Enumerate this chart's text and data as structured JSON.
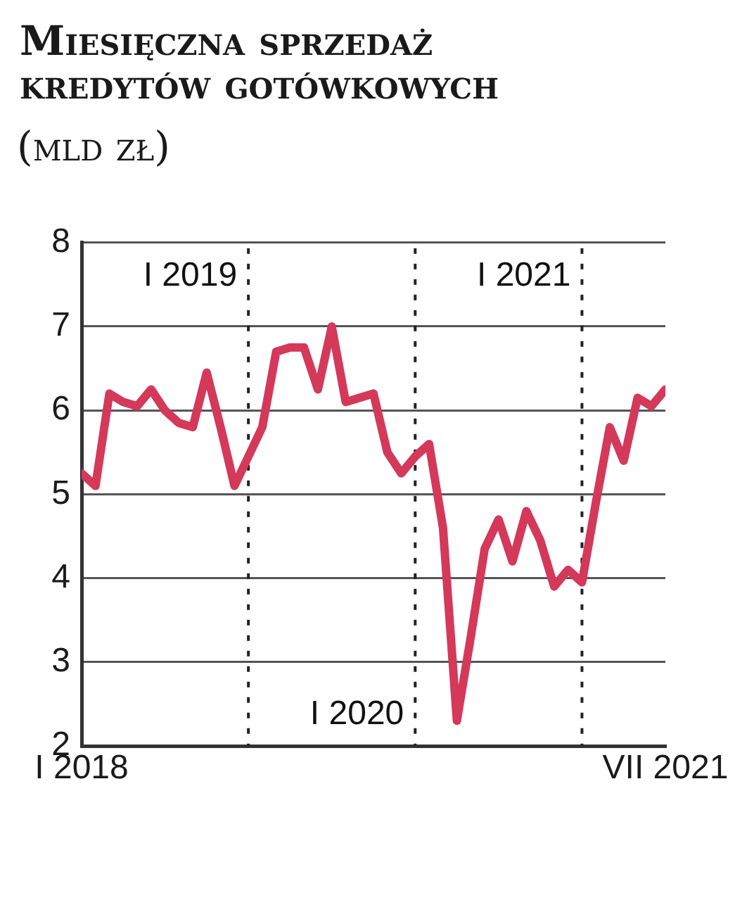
{
  "chart_data": {
    "type": "line",
    "title": "Miesięczna sprzedaż kredytów gotówkowych",
    "subtitle": "(mld zł)",
    "x": [
      "2018-01",
      "2018-02",
      "2018-03",
      "2018-04",
      "2018-05",
      "2018-06",
      "2018-07",
      "2018-08",
      "2018-09",
      "2018-10",
      "2018-11",
      "2018-12",
      "2019-01",
      "2019-02",
      "2019-03",
      "2019-04",
      "2019-05",
      "2019-06",
      "2019-07",
      "2019-08",
      "2019-09",
      "2019-10",
      "2019-11",
      "2019-12",
      "2020-01",
      "2020-02",
      "2020-03",
      "2020-04",
      "2020-05",
      "2020-06",
      "2020-07",
      "2020-08",
      "2020-09",
      "2020-10",
      "2020-11",
      "2020-12",
      "2021-01",
      "2021-02",
      "2021-03",
      "2021-04",
      "2021-05",
      "2021-06",
      "2021-07"
    ],
    "values": [
      5.25,
      5.1,
      6.2,
      6.1,
      6.05,
      6.25,
      6.0,
      5.85,
      5.8,
      6.45,
      5.8,
      5.1,
      5.45,
      5.8,
      6.7,
      6.75,
      6.75,
      6.25,
      7.0,
      6.1,
      6.15,
      6.2,
      5.5,
      5.25,
      5.45,
      5.6,
      4.6,
      2.3,
      3.3,
      4.35,
      4.7,
      4.2,
      4.8,
      4.45,
      3.9,
      4.1,
      3.95,
      4.9,
      5.8,
      5.4,
      6.15,
      6.05,
      6.25
    ],
    "color": "#d4395a",
    "xlim": [
      "2018-01",
      "2021-07"
    ],
    "xticks": [
      {
        "value": "2018-01",
        "label": "I 2018"
      },
      {
        "value": "2021-07",
        "label": "VII 2021"
      }
    ],
    "ylim": [
      2,
      8
    ],
    "yticks": [
      2,
      3,
      4,
      5,
      6,
      7,
      8
    ],
    "grid": "y",
    "legend": false,
    "marker": "none",
    "line_style": "solid",
    "ref_lines": [
      {
        "axis": "x",
        "value": "2019-01",
        "label": "I 2019",
        "color": "#222222",
        "line_style": "dotted"
      },
      {
        "axis": "x",
        "value": "2020-01",
        "label": "I 2020",
        "color": "#222222",
        "line_style": "dotted"
      },
      {
        "axis": "x",
        "value": "2021-01",
        "label": "I 2021",
        "color": "#222222",
        "line_style": "dotted"
      }
    ]
  }
}
